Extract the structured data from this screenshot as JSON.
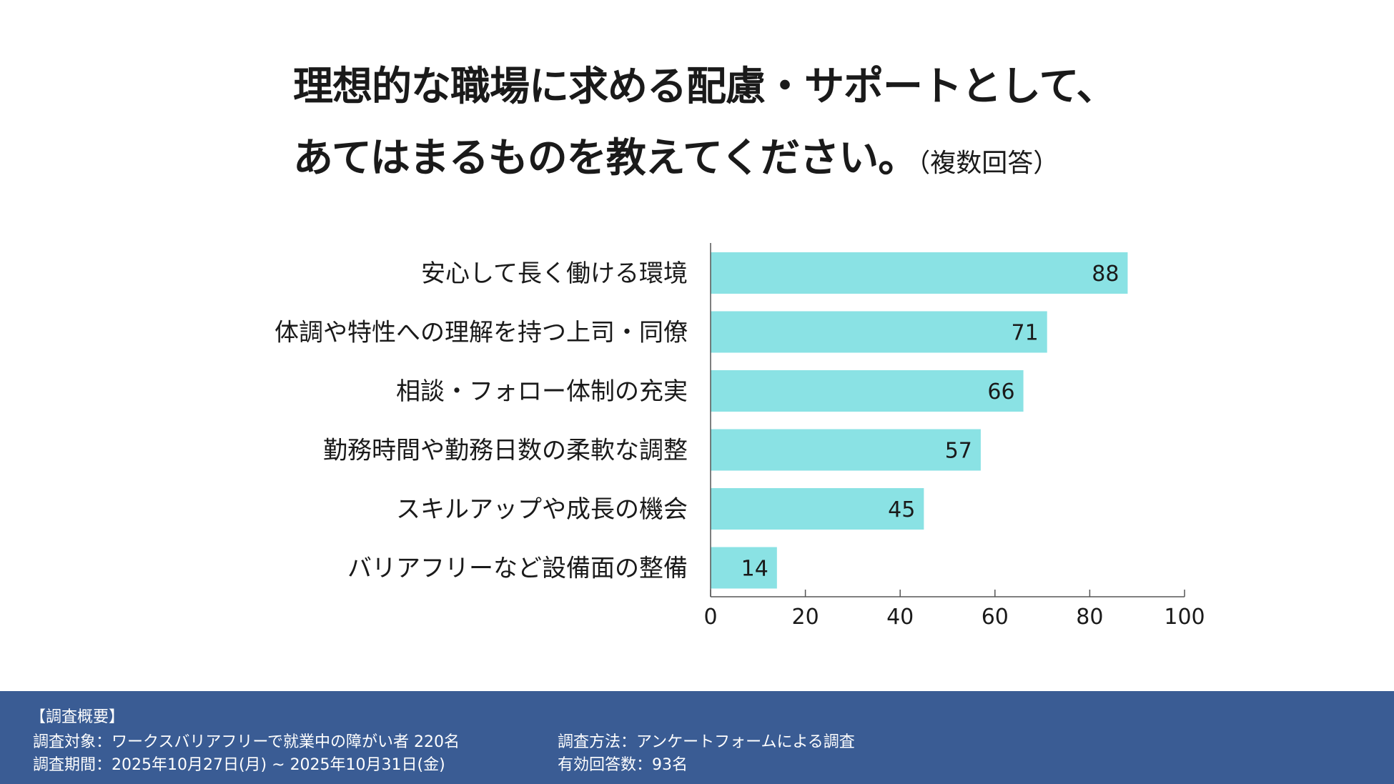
{
  "title": {
    "line1": "理想的な職場に求める配慮・サポートとして、",
    "line2": "あてはまるものを教えてください。",
    "note": "（複数回答）"
  },
  "chart_data": {
    "type": "bar",
    "orientation": "horizontal",
    "categories": [
      "安心して長く働ける環境",
      "体調や特性への理解を持つ上司・同僚",
      "相談・フォロー体制の充実",
      "勤務時間や勤務日数の柔軟な調整",
      "スキルアップや成長の機会",
      "バリアフリーなど設備面の整備"
    ],
    "values": [
      88,
      71,
      66,
      57,
      45,
      14
    ],
    "xlim": [
      0,
      100
    ],
    "xticks": [
      0,
      20,
      40,
      60,
      80,
      100
    ],
    "grid": false,
    "bar_color": "#8ae2e4",
    "data_labels": true
  },
  "footer": {
    "heading": "【調査概要】",
    "target": "調査対象：ワークスバリアフリーで就業中の障がい者 220名",
    "method": "調査方法：アンケートフォームによる調査",
    "period": "調査期間：2025年10月27日(月) ~ 2025年10月31日(金)",
    "responses": "有効回答数：93名",
    "background_color": "#3a5c94"
  }
}
